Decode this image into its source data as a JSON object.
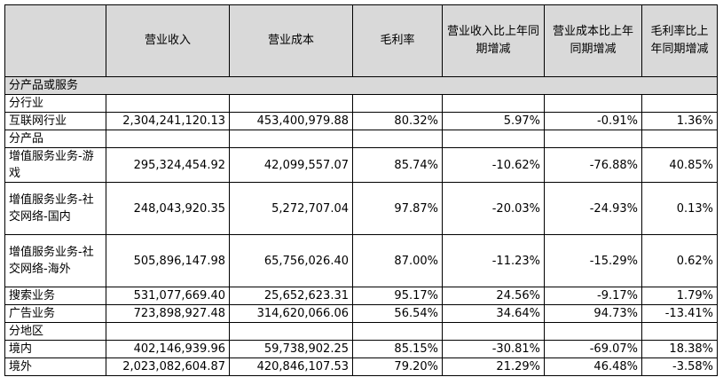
{
  "headers": [
    "",
    "营业收入",
    "营业成本",
    "毛利率",
    "营业收入比上年同期增减",
    "营业成本比上年同期增减",
    "毛利率比上年同期增减"
  ],
  "section_title": "分产品或服务",
  "rows": [
    {
      "label": "分行业",
      "cells": [
        "",
        "",
        "",
        "",
        "",
        ""
      ]
    },
    {
      "label": "互联网行业",
      "cells": [
        "2,304,241,120.13",
        "453,400,979.88",
        "80.32%",
        "5.97%",
        "-0.91%",
        "1.36%"
      ]
    },
    {
      "label": "分产品",
      "cells": [
        "",
        "",
        "",
        "",
        "",
        ""
      ]
    },
    {
      "label": "增值服务业务-游戏",
      "cells": [
        "295,324,454.92",
        "42,099,557.07",
        "85.74%",
        "-10.62%",
        "-76.88%",
        "40.85%"
      ]
    },
    {
      "label": "增值服务业务-社交网络-国内",
      "cells": [
        "248,043,920.35",
        "5,272,707.04",
        "97.87%",
        "-20.03%",
        "-24.93%",
        "0.13%"
      ]
    },
    {
      "label": "增值服务业务-社交网络-海外",
      "cells": [
        "505,896,147.98",
        "65,756,026.40",
        "87.00%",
        "-11.23%",
        "-15.29%",
        "0.62%"
      ]
    },
    {
      "label": "搜索业务",
      "cells": [
        "531,077,669.40",
        "25,652,623.31",
        "95.17%",
        "24.56%",
        "-9.17%",
        "1.79%"
      ]
    },
    {
      "label": "广告业务",
      "cells": [
        "723,898,927.48",
        "314,620,066.06",
        "56.54%",
        "34.64%",
        "94.73%",
        "-13.41%"
      ]
    },
    {
      "label": "分地区",
      "cells": [
        "",
        "",
        "",
        "",
        "",
        ""
      ]
    },
    {
      "label": "境内",
      "cells": [
        "402,146,939.96",
        "59,738,902.25",
        "85.15%",
        "-30.81%",
        "-69.07%",
        "18.38%"
      ]
    },
    {
      "label": "境外",
      "cells": [
        "2,023,082,604.87",
        "420,846,107.53",
        "79.20%",
        "21.29%",
        "46.48%",
        "-3.58%"
      ]
    }
  ]
}
